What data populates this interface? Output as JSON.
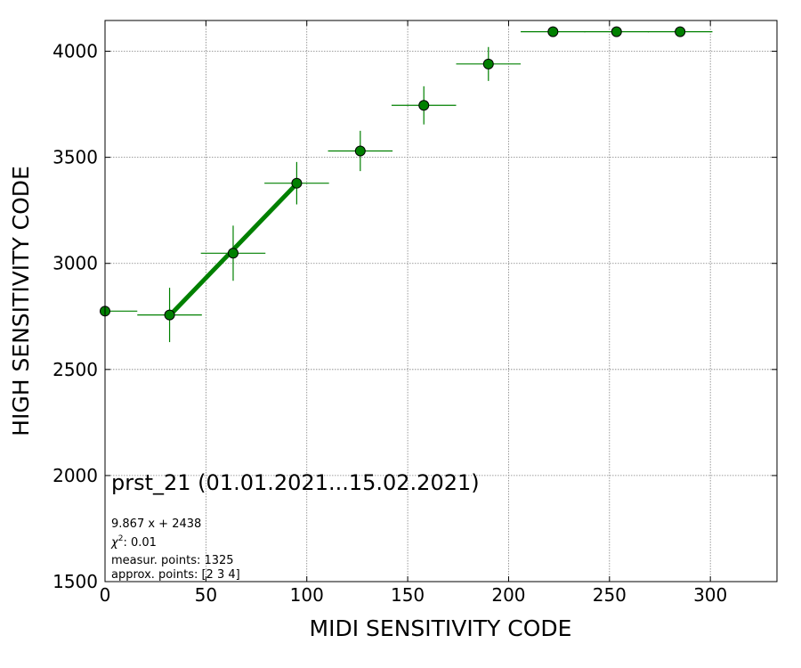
{
  "chart_data": {
    "type": "scatter",
    "title": "",
    "xlabel": "MIDI SENSITIVITY CODE",
    "ylabel": "HIGH SENSITIVITY CODE",
    "xlim": [
      0,
      333
    ],
    "ylim": [
      1500,
      4145
    ],
    "xticks": [
      0,
      50,
      100,
      150,
      200,
      250,
      300
    ],
    "yticks": [
      1500,
      2000,
      2500,
      3000,
      3500,
      4000
    ],
    "grid": true,
    "colors": {
      "marker": "#008000",
      "marker_edge": "#000000",
      "errorbar": "#008000",
      "fit_line": "#008000",
      "grid": "#808080"
    },
    "points": [
      {
        "x": 0,
        "y": 2775,
        "xerr": 16,
        "yerr": 0
      },
      {
        "x": 32,
        "y": 2757,
        "xerr": 16,
        "yerr": 128
      },
      {
        "x": 63.5,
        "y": 3048,
        "xerr": 16,
        "yerr": 130
      },
      {
        "x": 95,
        "y": 3378,
        "xerr": 16,
        "yerr": 100
      },
      {
        "x": 126.5,
        "y": 3530,
        "xerr": 16,
        "yerr": 95
      },
      {
        "x": 158,
        "y": 3745,
        "xerr": 16,
        "yerr": 90
      },
      {
        "x": 190,
        "y": 3940,
        "xerr": 16,
        "yerr": 80
      },
      {
        "x": 222,
        "y": 4092,
        "xerr": 16,
        "yerr": 0
      },
      {
        "x": 253.5,
        "y": 4092,
        "xerr": 16,
        "yerr": 0
      },
      {
        "x": 285,
        "y": 4092,
        "xerr": 16,
        "yerr": 0
      }
    ],
    "fit_line": {
      "slope": 9.867,
      "intercept": 2438,
      "x_start": 32,
      "x_end": 95
    },
    "annotations": {
      "dataset": "prst_21 (01.01.2021...15.02.2021)",
      "fit_formula": "9.867 x + 2438",
      "chi2_prefix": "χ",
      "chi2_sup": "2",
      "chi2_value": ": 0.01",
      "measur_points": "measur. points: 1325",
      "approx_points": "approx. points: [2 3 4]"
    }
  }
}
